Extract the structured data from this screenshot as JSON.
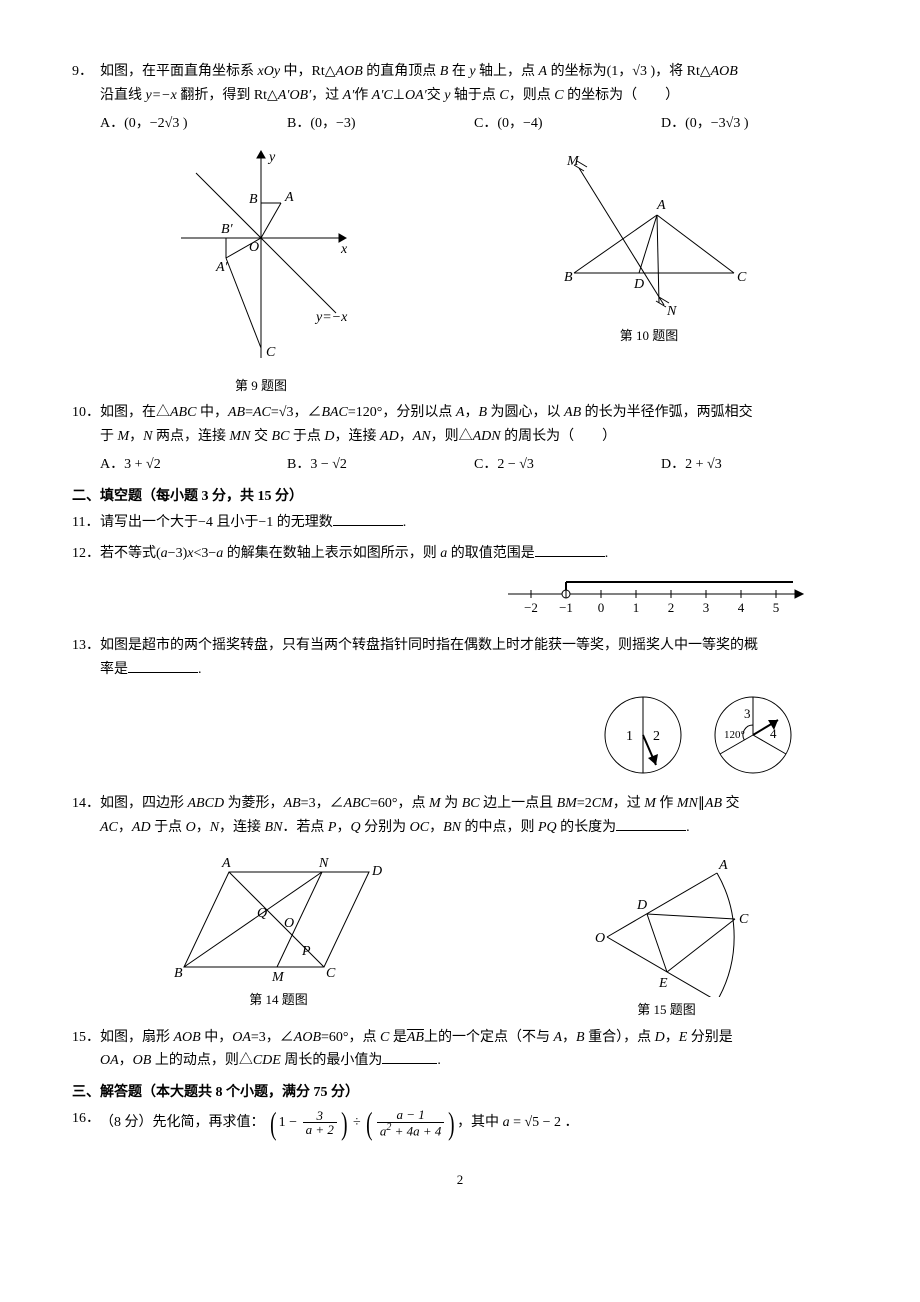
{
  "q9": {
    "num": "9．",
    "text1": "如图，在平面直角坐标系 ",
    "xoy": "xOy",
    "text2": " 中，Rt△",
    "aob": "AOB",
    "text3": " 的直角顶点 ",
    "b": "B",
    "text4": " 在 ",
    "y": "y",
    "text5": " 轴上，点 ",
    "a": "A",
    "text6": " 的坐标为(1，",
    "sqrt3": "√3",
    "text7": " )，将 Rt△",
    "aob2": "AOB",
    "text8_line2a": "沿直线 ",
    "yline": "y=−x",
    "text8_line2b": " 翻折，得到 Rt△",
    "aob_prime": "A′OB′",
    "text8_line2c": "，过 ",
    "aprime": "A′",
    "text8_line2d": "作 ",
    "ac": "A′C",
    "perp": "⊥",
    "oa": "OA′",
    "text8_line2e": "交 ",
    "y2": "y",
    "text8_line2f": " 轴于点 ",
    "c": "C",
    "text8_line2g": "，则点 ",
    "c2": "C",
    "text8_line2h": " 的坐标为（　　）",
    "optA": "A．(0，−2√3 )",
    "optB": "B．(0，−3)",
    "optC": "C．(0，−4)",
    "optD": "D．(0，−3√3 )",
    "figcap": "第 9 题图"
  },
  "q10": {
    "num": "10．",
    "text1": "如图，在△",
    "abc": "ABC",
    "text2": " 中，",
    "ab": "AB",
    "eq": "=",
    "ac": "AC",
    "eq2": "=",
    "sqrt3": "√3",
    "text3": "，∠",
    "bac": "BAC",
    "text4": "=120°，分别以点 ",
    "a": "A",
    "text5": "，",
    "b": "B",
    "text6": " 为圆心，以 ",
    "ab2": "AB",
    "text7": " 的长为半径作弧，两弧相交",
    "text8a": "于 ",
    "m": "M",
    "text8b": "，",
    "n": "N",
    "text8c": " 两点，连接 ",
    "mn": "MN",
    "text8d": " 交 ",
    "bc": "BC",
    "text8e": " 于点 ",
    "d": "D",
    "text8f": "，连接 ",
    "ad": "AD",
    "text8g": "，",
    "an": "AN",
    "text8h": "，则△",
    "adn": "ADN",
    "text8i": " 的周长为（　　）",
    "optA": "A．3 + √2",
    "optB": "B．3 − √2",
    "optC": "C．2 − √3",
    "optD": "D．2 + √3",
    "figcap": "第 10 题图"
  },
  "section2": "二、填空题（每小题 3 分，共 15 分）",
  "q11": {
    "num": "11．",
    "text": "请写出一个大于−4 且小于−1 的无理数",
    "period": "."
  },
  "q12": {
    "num": "12．",
    "text1": "若不等式(",
    "a": "a",
    "text2": "−3)",
    "x": "x",
    "text3": "<3−",
    "a2": "a",
    "text4": " 的解集在数轴上表示如图所示，则 ",
    "a3": "a",
    "text5": " 的取值范围是",
    "period": "."
  },
  "numline": {
    "ticks": [
      "−2",
      "−1",
      "0",
      "1",
      "2",
      "3",
      "4",
      "5"
    ]
  },
  "q13": {
    "num": "13．",
    "text1": "如图是超市的两个摇奖转盘，只有当两个转盘指针同时指在偶数上时才能获一等奖，则摇奖人中一等奖的概",
    "text2": "率是",
    "period": "."
  },
  "spinner": {
    "left": [
      "1",
      "2"
    ],
    "right": [
      "3",
      "4"
    ],
    "angle": "120°"
  },
  "q14": {
    "num": "14．",
    "text1": "如图，四边形 ",
    "abcd": "ABCD",
    "text2": " 为菱形，",
    "ab": "AB",
    "text3": "=3，∠",
    "abc": "ABC",
    "text4": "=60°，点 ",
    "m": "M",
    "text5": " 为 ",
    "bc": "BC",
    "text6": " 边上一点且 ",
    "bm": "BM",
    "text7": "=2",
    "cm": "CM",
    "text8": "，过 ",
    "m2": "M",
    "text9": " 作 ",
    "mn": "MN",
    "text10": "∥",
    "ab2": "AB",
    "text11": " 交",
    "line2a": "",
    "ac": "AC",
    "line2b": "，",
    "ad": "AD",
    "line2c": " 于点 ",
    "o": "O",
    "line2d": "，",
    "n": "N",
    "line2e": "，连接 ",
    "bn": "BN",
    "line2f": "．若点 ",
    "p": "P",
    "line2g": "，",
    "q": "Q",
    "line2h": " 分别为 ",
    "oc": "OC",
    "line2i": "，",
    "bn2": "BN",
    "line2j": " 的中点，则 ",
    "pq": "PQ",
    "line2k": " 的长度为",
    "period": ".",
    "figcap": "第 14 题图"
  },
  "q15": {
    "num": "15．",
    "text1": "如图，扇形 ",
    "aob": "AOB",
    "text2": " 中，",
    "oa": "OA",
    "text3": "=3，∠",
    "aob2": "AOB",
    "text4": "=60°，点 ",
    "c": "C",
    "text5": " 是",
    "arc_ab": "AB",
    "text6": "上的一个定点（不与 ",
    "a": "A",
    "text7": "，",
    "b": "B",
    "text8": " 重合），点 ",
    "d": "D",
    "text9": "，",
    "e": "E",
    "text10": " 分别是",
    "line2a": "",
    "oa2": "OA",
    "line2b": "，",
    "ob": "OB",
    "line2c": " 上的动点，则△",
    "cde": "CDE",
    "line2d": " 周长的最小值为",
    "period": ".",
    "figcap": "第 15 题图"
  },
  "section3": "三、解答题（本大题共 8 个小题，满分 75 分）",
  "q16": {
    "num": "16．",
    "text1": "（8 分）先化简，再求值：",
    "one": "1",
    "minus": "−",
    "f1num": "3",
    "f1den": "a + 2",
    "div": "÷",
    "f2num": "a − 1",
    "f2den_a": "a",
    "f2den_b": " + 4",
    "f2den_c": "a",
    "f2den_d": " + 4",
    "text2": "，其中 ",
    "a": "a",
    "eq": " = ",
    "sqrt5": "√5",
    "minus2": " − 2 ．"
  },
  "pagenum": "2"
}
